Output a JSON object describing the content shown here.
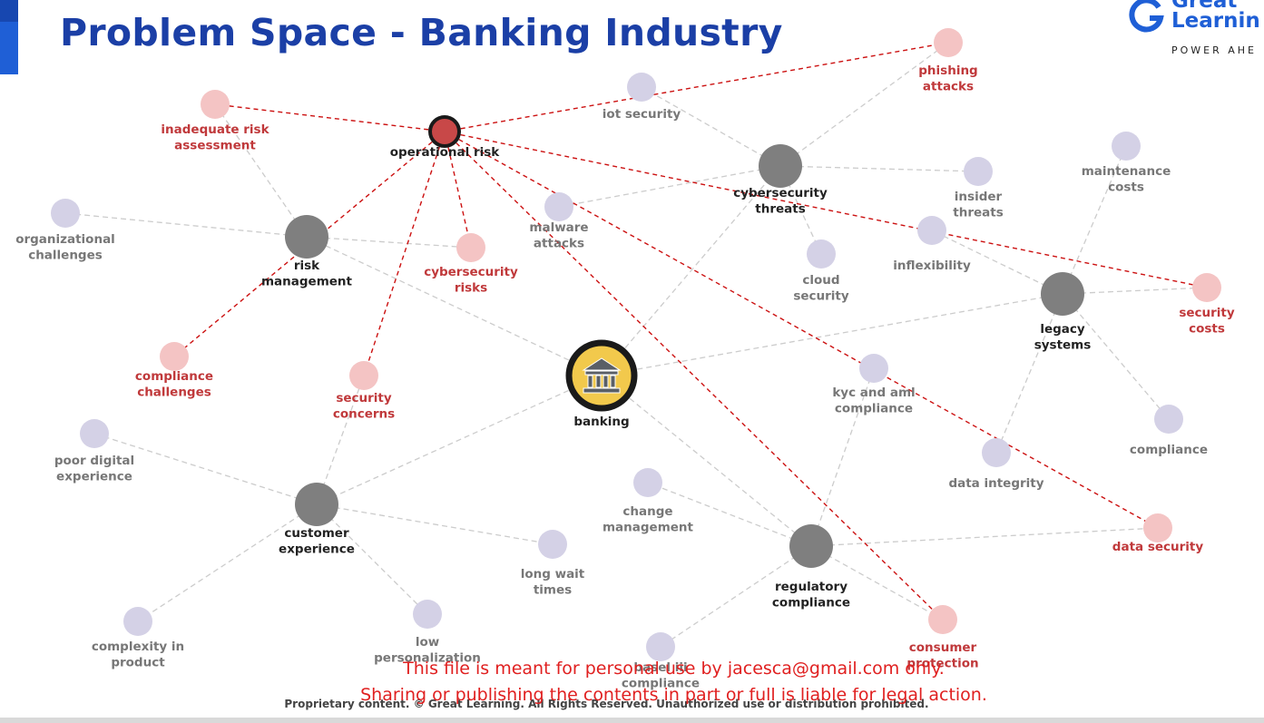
{
  "header": {
    "title": "Problem Space - Banking Industry",
    "logo_line1": "Great",
    "logo_line2": "Learnin",
    "logo_tagline": "POWER AHE"
  },
  "colors": {
    "title": "#1b3fa6",
    "hub_node": "#7f7f7f",
    "leaf_node": "#d4d1e6",
    "risk_node": "#f4c4c4",
    "risk_text": "#c0393b",
    "leaf_text": "#777777",
    "operational_risk": "#c84848",
    "risk_link": "#cc1111",
    "plain_link": "#cccccc"
  },
  "graph": {
    "nodes": [
      {
        "id": "banking",
        "label": "banking",
        "kind": "center",
        "icon": "bank-icon"
      },
      {
        "id": "op",
        "label": "operational risk",
        "kind": "op"
      },
      {
        "id": "rm",
        "label": "risk management",
        "kind": "hub"
      },
      {
        "id": "ct",
        "label": "cybersecurity threats",
        "kind": "hub"
      },
      {
        "id": "ls",
        "label": "legacy systems",
        "kind": "hub"
      },
      {
        "id": "ce",
        "label": "customer experience",
        "kind": "hub"
      },
      {
        "id": "rc",
        "label": "regulatory compliance",
        "kind": "hub"
      },
      {
        "id": "ira",
        "label": "inadequate risk assessment",
        "kind": "risk"
      },
      {
        "id": "pa",
        "label": "phishing attacks",
        "kind": "risk"
      },
      {
        "id": "cr",
        "label": "cybersecurity risks",
        "kind": "risk"
      },
      {
        "id": "cc",
        "label": "compliance challenges",
        "kind": "risk"
      },
      {
        "id": "sc",
        "label": "security concerns",
        "kind": "risk"
      },
      {
        "id": "scost",
        "label": "security costs",
        "kind": "risk"
      },
      {
        "id": "ds",
        "label": "data security",
        "kind": "risk"
      },
      {
        "id": "cp",
        "label": "consumer protection",
        "kind": "risk"
      },
      {
        "id": "iot",
        "label": "iot security",
        "kind": "leaf"
      },
      {
        "id": "oc",
        "label": "organizational challenges",
        "kind": "leaf"
      },
      {
        "id": "ma",
        "label": "malware attacks",
        "kind": "leaf"
      },
      {
        "id": "it",
        "label": "insider threats",
        "kind": "leaf"
      },
      {
        "id": "mc",
        "label": "maintenance costs",
        "kind": "leaf"
      },
      {
        "id": "cs",
        "label": "cloud security",
        "kind": "leaf"
      },
      {
        "id": "inf",
        "label": "inflexibility",
        "kind": "leaf"
      },
      {
        "id": "kyc",
        "label": "kyc and aml compliance",
        "kind": "leaf"
      },
      {
        "id": "comp",
        "label": "compliance",
        "kind": "leaf"
      },
      {
        "id": "di",
        "label": "data integrity",
        "kind": "leaf"
      },
      {
        "id": "pde",
        "label": "poor digital experience",
        "kind": "leaf"
      },
      {
        "id": "chm",
        "label": "change management",
        "kind": "leaf"
      },
      {
        "id": "lwt",
        "label": "long wait times",
        "kind": "leaf"
      },
      {
        "id": "cip",
        "label": "complexity in product",
        "kind": "leaf"
      },
      {
        "id": "lp",
        "label": "low personalization",
        "kind": "leaf"
      },
      {
        "id": "bc",
        "label": "basel iii compliance",
        "kind": "leaf"
      }
    ],
    "edges": [
      {
        "from": "banking",
        "to": "rm",
        "type": "plain"
      },
      {
        "from": "banking",
        "to": "ct",
        "type": "plain"
      },
      {
        "from": "banking",
        "to": "ls",
        "type": "plain"
      },
      {
        "from": "banking",
        "to": "ce",
        "type": "plain"
      },
      {
        "from": "banking",
        "to": "rc",
        "type": "plain"
      },
      {
        "from": "rm",
        "to": "ira",
        "type": "plain"
      },
      {
        "from": "rm",
        "to": "oc",
        "type": "plain"
      },
      {
        "from": "rm",
        "to": "cr",
        "type": "plain"
      },
      {
        "from": "ct",
        "to": "pa",
        "type": "plain"
      },
      {
        "from": "ct",
        "to": "iot",
        "type": "plain"
      },
      {
        "from": "ct",
        "to": "ma",
        "type": "plain"
      },
      {
        "from": "ct",
        "to": "it",
        "type": "plain"
      },
      {
        "from": "ct",
        "to": "cs",
        "type": "plain"
      },
      {
        "from": "ls",
        "to": "mc",
        "type": "plain"
      },
      {
        "from": "ls",
        "to": "inf",
        "type": "plain"
      },
      {
        "from": "ls",
        "to": "scost",
        "type": "plain"
      },
      {
        "from": "ls",
        "to": "comp",
        "type": "plain"
      },
      {
        "from": "ls",
        "to": "di",
        "type": "plain"
      },
      {
        "from": "ce",
        "to": "pde",
        "type": "plain"
      },
      {
        "from": "ce",
        "to": "lwt",
        "type": "plain"
      },
      {
        "from": "ce",
        "to": "cip",
        "type": "plain"
      },
      {
        "from": "ce",
        "to": "lp",
        "type": "plain"
      },
      {
        "from": "ce",
        "to": "sc",
        "type": "plain"
      },
      {
        "from": "rc",
        "to": "chm",
        "type": "plain"
      },
      {
        "from": "rc",
        "to": "kyc",
        "type": "plain"
      },
      {
        "from": "rc",
        "to": "ds",
        "type": "plain"
      },
      {
        "from": "rc",
        "to": "cp",
        "type": "plain"
      },
      {
        "from": "rc",
        "to": "bc",
        "type": "plain"
      },
      {
        "from": "op",
        "to": "ira",
        "type": "risk"
      },
      {
        "from": "op",
        "to": "pa",
        "type": "risk"
      },
      {
        "from": "op",
        "to": "cr",
        "type": "risk"
      },
      {
        "from": "op",
        "to": "cc",
        "type": "risk"
      },
      {
        "from": "op",
        "to": "sc",
        "type": "risk"
      },
      {
        "from": "op",
        "to": "scost",
        "type": "risk"
      },
      {
        "from": "op",
        "to": "ds",
        "type": "risk"
      },
      {
        "from": "op",
        "to": "cp",
        "type": "risk"
      }
    ]
  },
  "footer": {
    "copyright": "Proprietary content. © Great Learning. All Rights Reserved. Unauthorized use or distribution prohibited."
  },
  "watermark": {
    "line1": "This file is meant for personal use by jacesca@gmail.com only.",
    "line2": "Sharing or publishing the contents in part or full is liable for legal action."
  }
}
